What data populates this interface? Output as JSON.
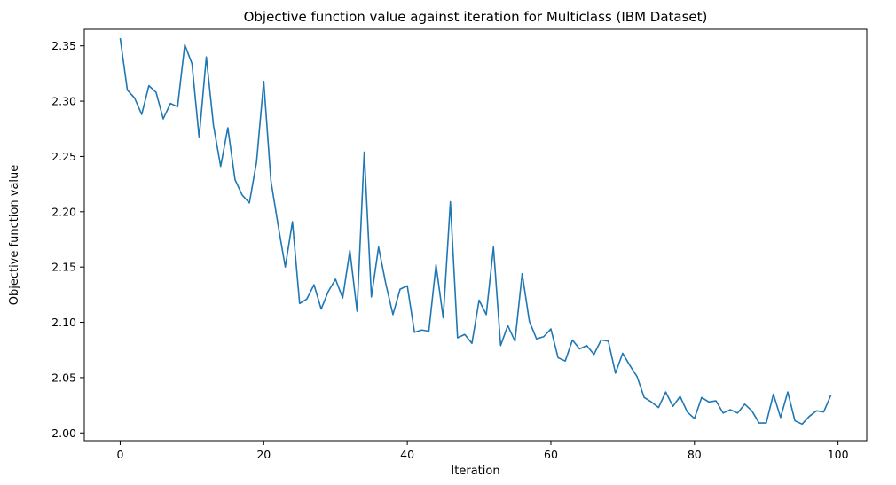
{
  "chart_data": {
    "type": "line",
    "title": "Objective function value against iteration for Multiclass (IBM Dataset)",
    "xlabel": "Iteration",
    "ylabel": "Objective function value",
    "xlim": [
      -5,
      104
    ],
    "ylim": [
      1.993,
      2.365
    ],
    "xticks": [
      0,
      20,
      40,
      60,
      80,
      100
    ],
    "xtick_labels": [
      "0",
      "20",
      "40",
      "60",
      "80",
      "100"
    ],
    "yticks": [
      2.0,
      2.05,
      2.1,
      2.15,
      2.2,
      2.25,
      2.3,
      2.35
    ],
    "ytick_labels": [
      "2.00",
      "2.05",
      "2.10",
      "2.15",
      "2.20",
      "2.25",
      "2.30",
      "2.35"
    ],
    "grid": false,
    "legend": "none",
    "line_color": "#1f77b4",
    "series": [
      {
        "values": [
          2.357,
          2.31,
          2.303,
          2.288,
          2.314,
          2.308,
          2.284,
          2.298,
          2.295,
          2.351,
          2.334,
          2.267,
          2.34,
          2.278,
          2.241,
          2.276,
          2.229,
          2.215,
          2.208,
          2.245,
          2.318,
          2.228,
          2.188,
          2.15,
          2.191,
          2.117,
          2.121,
          2.134,
          2.112,
          2.128,
          2.139,
          2.122,
          2.165,
          2.11,
          2.254,
          2.123,
          2.168,
          2.135,
          2.107,
          2.13,
          2.133,
          2.091,
          2.093,
          2.092,
          2.152,
          2.104,
          2.209,
          2.086,
          2.089,
          2.081,
          2.12,
          2.107,
          2.168,
          2.079,
          2.097,
          2.083,
          2.144,
          2.101,
          2.085,
          2.087,
          2.094,
          2.068,
          2.065,
          2.084,
          2.076,
          2.079,
          2.071,
          2.084,
          2.083,
          2.054,
          2.072,
          2.061,
          2.051,
          2.032,
          2.028,
          2.023,
          2.037,
          2.024,
          2.033,
          2.019,
          2.013,
          2.032,
          2.028,
          2.029,
          2.018,
          2.021,
          2.018,
          2.026,
          2.02,
          2.009,
          2.009,
          2.035,
          2.014,
          2.037,
          2.011,
          2.008,
          2.015,
          2.02,
          2.019,
          2.034
        ]
      }
    ]
  }
}
